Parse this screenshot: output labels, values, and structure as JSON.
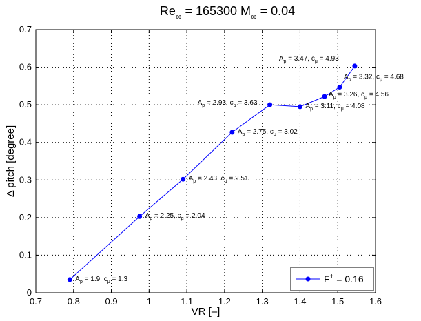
{
  "chart_data": {
    "type": "line",
    "title": "Re",
    "title_parts": {
      "re_base": "Re",
      "re_sub": "∞",
      "re_value": " = 165300 M",
      "m_sub": "∞",
      "m_value": " = 0.04"
    },
    "xlabel": "VR [–]",
    "ylabel": "Δ pitch [degree]",
    "xlim": [
      0.7,
      1.6
    ],
    "ylim": [
      0,
      0.7
    ],
    "xticks": [
      "0.7",
      "0.8",
      "0.9",
      "1",
      "1.1",
      "1.2",
      "1.3",
      "1.4",
      "1.5",
      "1.6"
    ],
    "yticks": [
      "0",
      "0.1",
      "0.2",
      "0.3",
      "0.4",
      "0.5",
      "0.6",
      "0.7"
    ],
    "grid": true,
    "legend_position": "bottom-right",
    "series": [
      {
        "name": "F⁺ = 0.16",
        "color": "#0000ff",
        "points": [
          {
            "x": 0.79,
            "y": 0.035,
            "ap": "1.9",
            "cmu": "1.3"
          },
          {
            "x": 0.975,
            "y": 0.203,
            "ap": "2.25",
            "cmu": "2.04"
          },
          {
            "x": 1.09,
            "y": 0.302,
            "ap": "2.43",
            "cmu": "2.51"
          },
          {
            "x": 1.22,
            "y": 0.427,
            "ap": "2.75",
            "cmu": "3.02"
          },
          {
            "x": 1.32,
            "y": 0.5,
            "ap": "2.93",
            "cmu": "3.63"
          },
          {
            "x": 1.4,
            "y": 0.495,
            "ap": "3.11",
            "cmu": "4.08"
          },
          {
            "x": 1.465,
            "y": 0.522,
            "ap": "3.26",
            "cmu": "4.56"
          },
          {
            "x": 1.505,
            "y": 0.547,
            "ap": "3.32",
            "cmu": "4.68"
          },
          {
            "x": 1.545,
            "y": 0.603,
            "ap": "3.47",
            "cmu": "4.93"
          }
        ]
      }
    ],
    "annotation_format": {
      "a_letter": "A",
      "a_sub": "p",
      "c_letter": "c",
      "c_sub": "μ"
    },
    "legend": {
      "label_base": "F",
      "label_sup": "+",
      "label_rest": " = 0.16"
    }
  }
}
